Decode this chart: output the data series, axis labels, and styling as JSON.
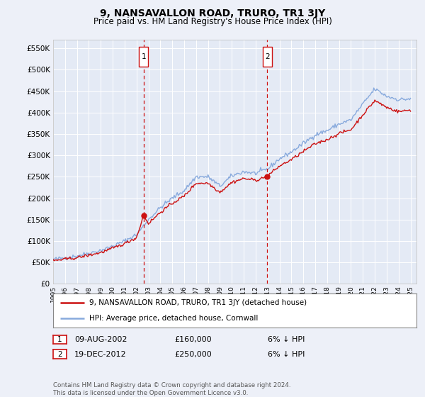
{
  "title": "9, NANSAVALLON ROAD, TRURO, TR1 3JY",
  "subtitle": "Price paid vs. HM Land Registry's House Price Index (HPI)",
  "background_color": "#edf0f8",
  "plot_background": "#e4eaf5",
  "grid_color": "#ffffff",
  "hpi_color": "#88aadd",
  "price_color": "#cc1111",
  "ylim": [
    0,
    570000
  ],
  "yticks": [
    0,
    50000,
    100000,
    150000,
    200000,
    250000,
    300000,
    350000,
    400000,
    450000,
    500000,
    550000
  ],
  "ytick_labels": [
    "£0",
    "£50K",
    "£100K",
    "£150K",
    "£200K",
    "£250K",
    "£300K",
    "£350K",
    "£400K",
    "£450K",
    "£500K",
    "£550K"
  ],
  "sale1_date": 2002.6,
  "sale1_price": 160000,
  "sale1_label": "1",
  "sale1_text": "09-AUG-2002",
  "sale1_amount": "£160,000",
  "sale1_pct": "6% ↓ HPI",
  "sale2_date": 2012.97,
  "sale2_price": 250000,
  "sale2_label": "2",
  "sale2_text": "19-DEC-2012",
  "sale2_amount": "£250,000",
  "sale2_pct": "6% ↓ HPI",
  "legend_line1": "9, NANSAVALLON ROAD, TRURO, TR1 3JY (detached house)",
  "legend_line2": "HPI: Average price, detached house, Cornwall",
  "footnote": "Contains HM Land Registry data © Crown copyright and database right 2024.\nThis data is licensed under the Open Government Licence v3.0.",
  "xmin": 1995,
  "xmax": 2025.5
}
